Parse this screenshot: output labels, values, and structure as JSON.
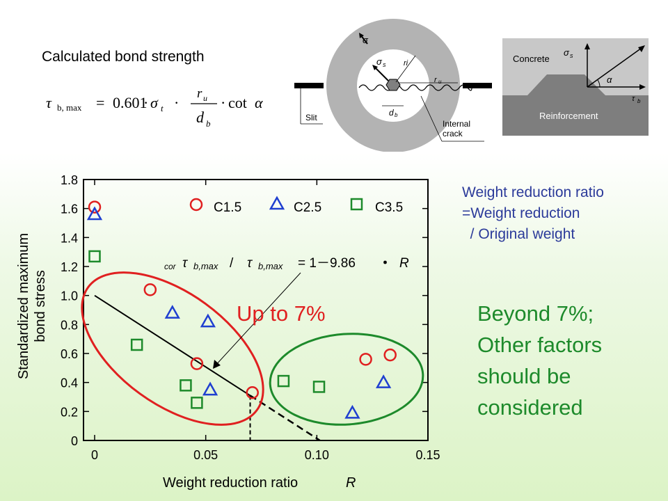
{
  "header": {
    "title": "Calculated bond strength"
  },
  "formula": {
    "lhs_symbol": "τ",
    "lhs_sub": "b, max",
    "equals": "=",
    "coefficient": "0.601",
    "dot": "·",
    "sigma": "σ",
    "sigma_sub": "t",
    "frac_num": "r",
    "frac_num_sub": "u",
    "frac_den": "d",
    "frac_den_sub": "b",
    "cot": "cot",
    "alpha": "α"
  },
  "ring_diagram": {
    "sigma": "σ",
    "sigma_s": "σ",
    "sigma_s_sub": "s",
    "r_i": "ri",
    "r_u": "r",
    "r_u_sub": "u",
    "d_b": "d",
    "d_b_sub": "b",
    "slit": "Slit",
    "internal_crack": [
      "Internal",
      "crack"
    ]
  },
  "profile_diagram": {
    "concrete": "Concrete",
    "sigma_s": "σ",
    "sigma_s_sub": "s",
    "alpha": "α",
    "tau_b": "τ",
    "tau_b_sub": "b",
    "reinforcement": "Reinforcement"
  },
  "note": {
    "lines": [
      "Weight reduction ratio",
      "=Weight reduction",
      "  / Original weight"
    ]
  },
  "annotation": {
    "beyond_lines": [
      "Beyond 7%;",
      "Other factors",
      "should be",
      "considered"
    ],
    "up_to": "Up to 7%"
  },
  "chart_data": {
    "type": "scatter",
    "title": "",
    "xlabel": "Weight reduction ratio",
    "xlabel_symbol": "R",
    "ylabel_lines": [
      "Standardized maximum",
      "bond stress"
    ],
    "xlim": [
      0,
      0.15
    ],
    "ylim": [
      0,
      1.8
    ],
    "xticks": [
      0,
      0.05,
      0.1,
      0.15
    ],
    "xtick_labels": [
      "0",
      "0.05",
      "0.10",
      "0.15"
    ],
    "yticks": [
      0,
      0.2,
      0.4,
      0.6,
      0.8,
      1.0,
      1.2,
      1.4,
      1.6,
      1.8
    ],
    "ytick_labels": [
      "0",
      "0.2",
      "0.4",
      "0.6",
      "0.8",
      "1.0",
      "1.2",
      "1.4",
      "1.6",
      "1.8"
    ],
    "legend_position": "top",
    "series": [
      {
        "name": "C1.5",
        "marker": "circle",
        "color": "#e02020",
        "x": [
          0.0,
          0.025,
          0.046,
          0.071,
          0.122,
          0.133
        ],
        "y": [
          1.61,
          1.04,
          0.53,
          0.33,
          0.56,
          0.59
        ]
      },
      {
        "name": "C2.5",
        "marker": "triangle",
        "color": "#1f3fd0",
        "x": [
          0.0,
          0.035,
          0.051,
          0.052,
          0.116,
          0.13
        ],
        "y": [
          1.56,
          0.88,
          0.82,
          0.35,
          0.19,
          0.4
        ]
      },
      {
        "name": "C3.5",
        "marker": "square",
        "color": "#1d8a2b",
        "x": [
          0.0,
          0.019,
          0.041,
          0.046,
          0.085,
          0.101
        ],
        "y": [
          1.27,
          0.66,
          0.38,
          0.26,
          0.41,
          0.37
        ]
      }
    ],
    "fit_line": {
      "label_prefix": "cor",
      "label_tau": "τ",
      "label_sub1": "b,max",
      "label_slash": " / ",
      "label_sub2": "b,max",
      "label_rhs": "= 1－9.86",
      "label_dot": "・",
      "label_R": "R",
      "solid": {
        "x": [
          0,
          0.07
        ],
        "y": [
          1.0,
          0.31
        ]
      },
      "dashed": {
        "x": [
          0.07,
          0.1014
        ],
        "y": [
          0.31,
          0.0
        ]
      },
      "vertical_dashed_x": 0.07
    }
  }
}
